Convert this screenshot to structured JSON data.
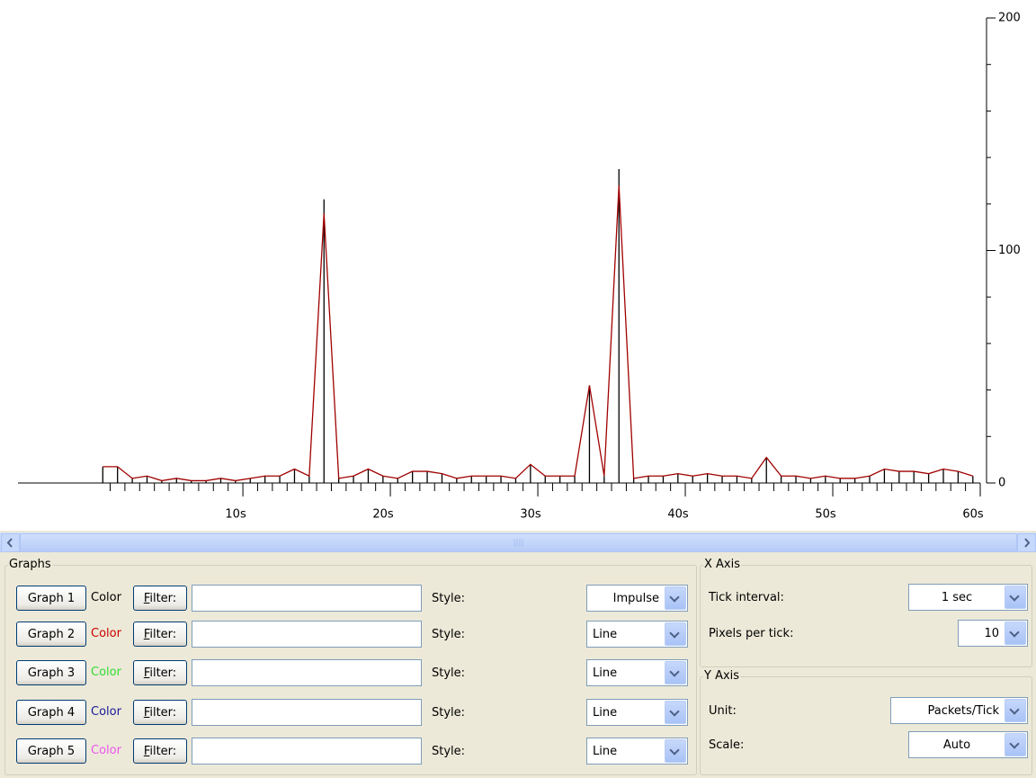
{
  "chart_data": {
    "type": "line",
    "x": [
      0.5,
      1.5,
      2.5,
      3.5,
      4.5,
      5.5,
      6.5,
      7.5,
      8.5,
      9.5,
      10.5,
      11.5,
      12.5,
      13.5,
      14.5,
      15.5,
      16.5,
      17.5,
      18.5,
      19.5,
      20.5,
      21.5,
      22.5,
      23.5,
      24.5,
      25.5,
      26.5,
      27.5,
      28.5,
      29.5,
      30.5,
      31.5,
      32.5,
      33.5,
      34.5,
      35.5,
      36.5,
      37.5,
      38.5,
      39.5,
      40.5,
      41.5,
      42.5,
      43.5,
      44.5,
      45.5,
      46.5,
      47.5,
      48.5,
      49.5,
      50.5,
      51.5,
      52.5,
      53.5,
      54.5,
      55.5,
      56.5,
      57.5,
      58.5,
      59.5
    ],
    "series": [
      {
        "style": "impulse",
        "color": "#000000",
        "values": [
          7,
          7,
          2,
          3,
          1,
          2,
          1,
          1,
          2,
          1,
          2,
          3,
          3,
          6,
          3,
          122,
          2,
          3,
          6,
          3,
          2,
          5,
          5,
          4,
          2,
          3,
          3,
          3,
          2,
          8,
          3,
          3,
          3,
          42,
          3,
          135,
          2,
          3,
          3,
          4,
          3,
          4,
          3,
          3,
          2,
          11,
          3,
          3,
          2,
          3,
          2,
          2,
          3,
          6,
          5,
          5,
          4,
          6,
          5,
          3
        ]
      },
      {
        "style": "line",
        "color": "#a00000",
        "values": [
          7,
          7,
          2,
          3,
          1,
          2,
          1,
          1,
          2,
          1,
          2,
          3,
          3,
          6,
          3,
          116,
          2,
          3,
          6,
          3,
          2,
          5,
          5,
          4,
          2,
          3,
          3,
          3,
          2,
          8,
          3,
          3,
          3,
          42,
          3,
          128,
          2,
          3,
          3,
          4,
          3,
          4,
          3,
          3,
          2,
          11,
          3,
          3,
          2,
          3,
          2,
          2,
          3,
          6,
          5,
          5,
          4,
          6,
          5,
          3
        ]
      }
    ],
    "xlim": [
      -5.25,
      60
    ],
    "xticks": [
      {
        "value": 10,
        "label": "10s"
      },
      {
        "value": 20,
        "label": "20s"
      },
      {
        "value": 30,
        "label": "30s"
      },
      {
        "value": 40,
        "label": "40s"
      },
      {
        "value": 50,
        "label": "50s"
      },
      {
        "value": 60,
        "label": "60s"
      }
    ],
    "xminor": [
      1,
      2,
      3,
      4,
      5,
      6,
      7,
      8,
      9,
      11,
      12,
      13,
      14,
      15,
      16,
      17,
      18,
      19,
      21,
      22,
      23,
      24,
      25,
      26,
      27,
      28,
      29,
      31,
      32,
      33,
      34,
      35,
      36,
      37,
      38,
      39,
      41,
      42,
      43,
      44,
      45,
      46,
      47,
      48,
      49,
      51,
      52,
      53,
      54,
      55,
      56,
      57,
      58,
      59
    ],
    "ylim": [
      0,
      200
    ],
    "yticks": [
      0,
      100,
      200
    ],
    "yminor": [
      20,
      40,
      60,
      80,
      120,
      140,
      160,
      180
    ]
  },
  "graphs": {
    "title": "Graphs",
    "rows": [
      {
        "button": "Graph 1",
        "color_label": "Color",
        "color": "#000000",
        "filter_button": "Filter:",
        "style_label": "Style:",
        "style": "Impulse"
      },
      {
        "button": "Graph 2",
        "color_label": "Color",
        "color": "#cc0000",
        "filter_button": "Filter:",
        "style_label": "Style:",
        "style": "Line"
      },
      {
        "button": "Graph 3",
        "color_label": "Color",
        "color": "#33dd33",
        "filter_button": "Filter:",
        "style_label": "Style:",
        "style": "Line"
      },
      {
        "button": "Graph 4",
        "color_label": "Color",
        "color": "#1a1a99",
        "filter_button": "Filter:",
        "style_label": "Style:",
        "style": "Line"
      },
      {
        "button": "Graph 5",
        "color_label": "Color",
        "color": "#ee55ee",
        "filter_button": "Filter:",
        "style_label": "Style:",
        "style": "Line"
      }
    ]
  },
  "x_axis": {
    "title": "X Axis",
    "tick_interval_label": "Tick interval:",
    "tick_interval": "1 sec",
    "pixels_per_tick_label": "Pixels per tick:",
    "pixels_per_tick": "10"
  },
  "y_axis": {
    "title": "Y Axis",
    "unit_label": "Unit:",
    "unit": "Packets/Tick",
    "scale_label": "Scale:",
    "scale": "Auto"
  }
}
